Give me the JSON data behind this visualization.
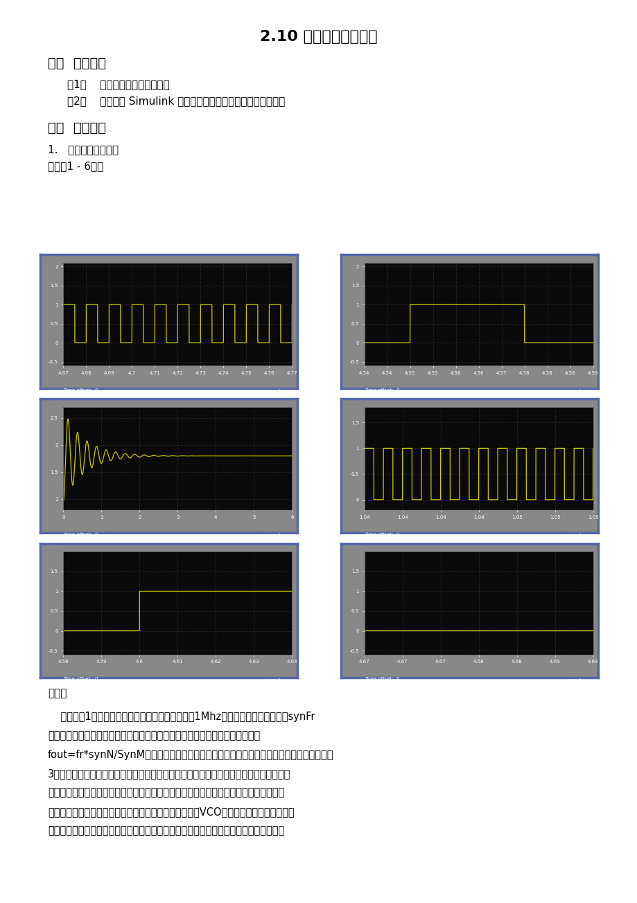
{
  "title": "2.10 频率合成仿真实验",
  "section1_title": "一、  实验目的",
  "item1": "（1）    进一步理解频率合成器；",
  "item2": "（2）    熟悉使用 Simulink 软件进行频率合成器仿真的基本方法。",
  "section2_title": "二、  实验内容",
  "subsection1": "1.   锁相环频率合成器",
  "scope_label": "示波器1 - 6波形",
  "analysis_title": "分析：",
  "analysis_lines": [
    "    由示波器1的波形可以看出前置分频器输出频率为1Mhz，该频率恰好为参考频率synFr",
    "经过参考信号分频器分频后得到的结果。通过计算输出方波波形的频率，可得出",
    "fout=fr*synN/SynM的关系。同时，通过波形也可看出，异或门有鉴相的作用。通过示波器",
    "3的波形可看出，低通滤波器滤除了鉴相器输出的无用的高频成分和其它干扰分量。通过环",
    "路不断的调节，输入参考信号和下分频器的输出信号之间的相位差达到最小。当环路趋近",
    "于锁定时，滤波器输出稳定的控制电压用这个电压去控制VCO，最终使其输出频率稳定不",
    "再变化，此时输入参考时钟信号和下分频模块的输出信号之间频率相等，相位差不随时间"
  ],
  "bg": "#ffffff",
  "text_color": "#000000",
  "scope_bg": "#0a0a0a",
  "signal_color": "#cccc00",
  "scope_border_color": "#5566aa",
  "scope_outer_bg": "#888888"
}
